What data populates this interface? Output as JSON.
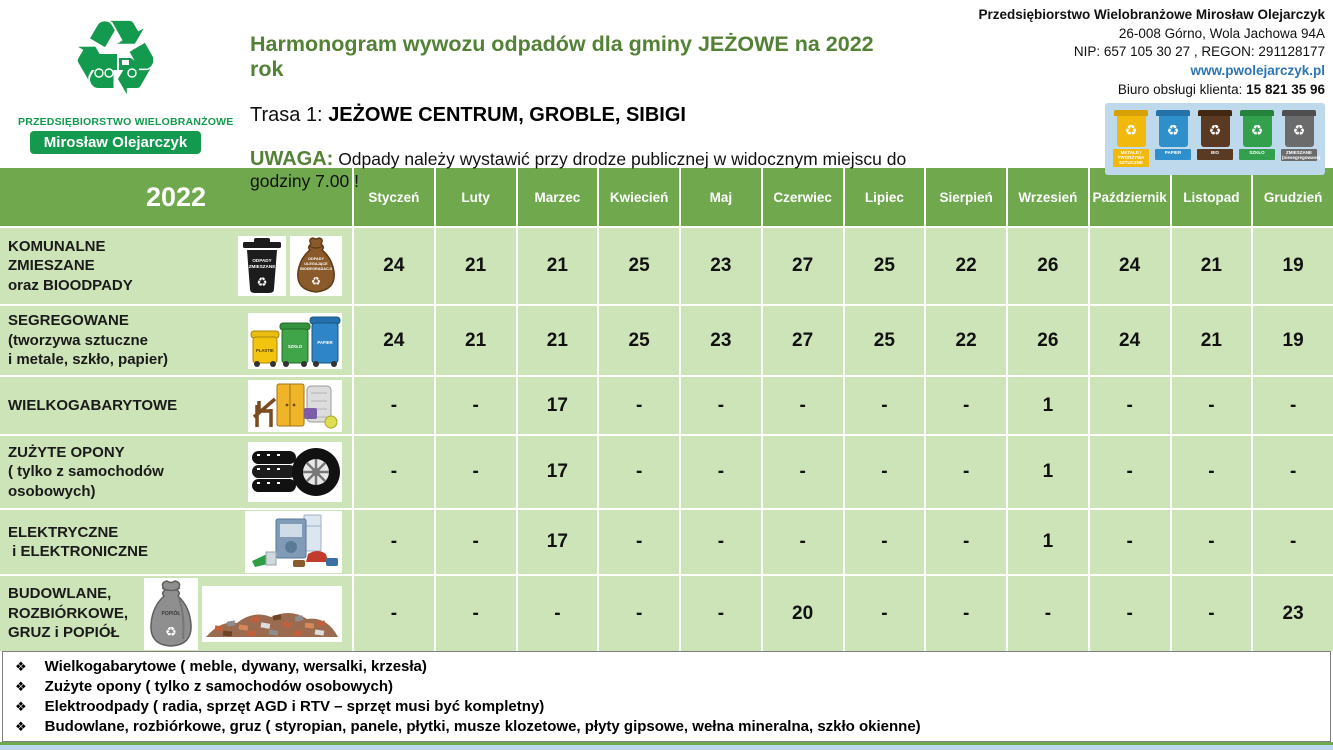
{
  "logo": {
    "company_type": "PRZEDSIĘBIORSTWO WIELOBRANŻOWE",
    "owner": "Mirosław Olejarczyk"
  },
  "header": {
    "title": "Harmonogram wywozu odpadów dla gminy JEŻOWE na 2022 rok",
    "route_label": "Trasa 1: ",
    "route_value": "JEŻOWE CENTRUM, GROBLE, SIBIGI",
    "notice_label": "UWAGA:",
    "notice_text": " Odpady należy wystawić przy drodze publicznej w widocznym miejscu do godziny 7.00 !"
  },
  "contact": {
    "company": "Przedsiębiorstwo Wielobranżowe Mirosław Olejarczyk",
    "address": "26-008 Górno, Wola Jachowa 94A",
    "nip_regon": "NIP: 657 105 30 27 , REGON: 291128177",
    "website": "www.pwolejarczyk.pl",
    "office_label": "Biuro obsługi klienta: ",
    "office_phone": "15 821 35 96"
  },
  "bins_legend": [
    "METALE I TWORZYWA SZTUCZNE",
    "PAPIER",
    "BIO",
    "SZKŁO",
    "ZMIESZANE (niesegregowane)"
  ],
  "icon_labels": {
    "mixed_line1": "ODPADY",
    "mixed_line2": "ZMIESZANE",
    "bio_line1": "ODPADY",
    "bio_line2": "ULEGAJĄCE",
    "bio_line3": "BIODEGRADACJI",
    "plastic_bin": "PLASTIK",
    "glass_bin": "SZKŁO",
    "paper_bin": "PAPIER",
    "ash": "POPIÓŁ"
  },
  "table": {
    "year": "2022",
    "months": [
      "Styczeń",
      "Luty",
      "Marzec",
      "Kwiecień",
      "Maj",
      "Czerwiec",
      "Lipiec",
      "Sierpień",
      "Wrzesień",
      "Październik",
      "Listopad",
      "Grudzień"
    ],
    "rows": [
      {
        "id": "komunalne-zmieszane",
        "label_lines": [
          "KOMUNALNE",
          "ZMIESZANE",
          "oraz BIOODPADY"
        ],
        "icons": [
          "mixed-waste-bin-icon",
          "bio-sack-icon"
        ],
        "values": [
          "24",
          "21",
          "21",
          "25",
          "23",
          "27",
          "25",
          "22",
          "26",
          "24",
          "21",
          "19"
        ]
      },
      {
        "id": "segregowane",
        "label_lines": [
          "SEGREGOWANE",
          "(tworzywa sztuczne",
          "i metale, szkło, papier)"
        ],
        "icons": [
          "segregated-bins-icon"
        ],
        "values": [
          "24",
          "21",
          "21",
          "25",
          "23",
          "27",
          "25",
          "22",
          "26",
          "24",
          "21",
          "19"
        ]
      },
      {
        "id": "wielkogabarytowe",
        "label_lines": [
          "WIELKOGABARYTOWE"
        ],
        "icons": [
          "bulky-waste-icon"
        ],
        "values": [
          "-",
          "-",
          "17",
          "-",
          "-",
          "-",
          "-",
          "-",
          "1",
          "-",
          "-",
          "-"
        ]
      },
      {
        "id": "zuzyte-opony",
        "label_lines": [
          "ZUŻYTE OPONY",
          "( tylko z samochodów",
          "osobowych)"
        ],
        "icons": [
          "tires-icon"
        ],
        "values": [
          "-",
          "-",
          "17",
          "-",
          "-",
          "-",
          "-",
          "-",
          "1",
          "-",
          "-",
          "-"
        ]
      },
      {
        "id": "elektryczne",
        "label_lines": [
          "ELEKTRYCZNE",
          " i ELEKTRONICZNE"
        ],
        "icons": [
          "electronics-icon"
        ],
        "values": [
          "-",
          "-",
          "17",
          "-",
          "-",
          "-",
          "-",
          "-",
          "1",
          "-",
          "-",
          "-"
        ]
      },
      {
        "id": "budowlane",
        "label_lines": [
          "BUDOWLANE,",
          "ROZBIÓRKOWE,",
          "GRUZ i POPIÓŁ"
        ],
        "icons": [
          "ash-sack-icon",
          "rubble-icon"
        ],
        "values": [
          "-",
          "-",
          "-",
          "-",
          "-",
          "20",
          "-",
          "-",
          "-",
          "-",
          "-",
          "23"
        ]
      }
    ]
  },
  "notes_bullet": "❖",
  "notes": [
    "Wielkogabarytowe ( meble, dywany, wersalki, krzesła)",
    "Zużyte opony ( tylko z samochodów osobowych)",
    "Elektroodpady ( radia, sprzęt AGD i RTV – sprzęt musi być kompletny)",
    "Budowlane, rozbiórkowe, gruz ( styropian, panele, płytki, musze klozetowe, płyty gipsowe, wełna mineralna, szkło okienne)"
  ],
  "colors": {
    "header_green": "#6FA84D",
    "cell_green": "#CDE3B8",
    "title_green": "#538135",
    "link_blue": "#2E75B6",
    "footer_blue": "#BDD7EE",
    "logo_green": "#149A4E",
    "text_dark": "#1a1a1a"
  }
}
